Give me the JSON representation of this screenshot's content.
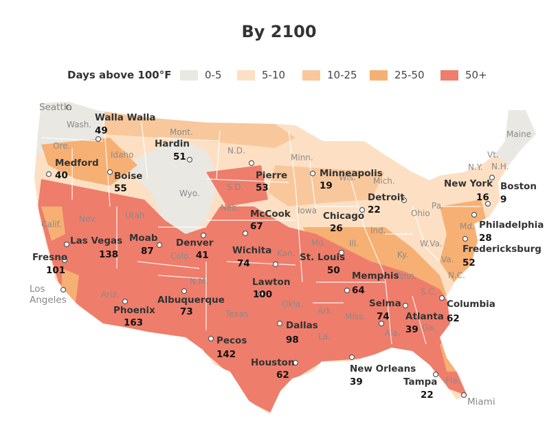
{
  "title": "By 2100",
  "legend": {
    "label": "Days above 100°F",
    "items": [
      {
        "label": "0-5",
        "color": "#e9e8e2"
      },
      {
        "label": "5-10",
        "color": "#fde0c4"
      },
      {
        "label": "10-25",
        "color": "#f8c89c"
      },
      {
        "label": "25-50",
        "color": "#f6b073"
      },
      {
        "label": "50+",
        "color": "#ee7d6b"
      }
    ]
  },
  "states": [
    "Wash.",
    "Ore.",
    "Calif.",
    "Idaho",
    "Nev.",
    "Mont.",
    "Wyo.",
    "Utah",
    "Colo.",
    "Ariz.",
    "N.M.",
    "N.D.",
    "S.D.",
    "Neb.",
    "Kan.",
    "Okla.",
    "Texas",
    "Minn.",
    "Iowa",
    "Mo.",
    "Ark.",
    "La.",
    "Wis.",
    "Mich.",
    "Ill.",
    "Ind.",
    "Ohio",
    "Ky.",
    "Tenn.",
    "Miss.",
    "Ala.",
    "Ga.",
    "Fla.",
    "S.C.",
    "N.C.",
    "Va.",
    "W.Va.",
    "Md.",
    "Pa.",
    "N.Y.",
    "Vt.",
    "N.H.",
    "Maine"
  ],
  "cities": [
    {
      "name": "Seattle",
      "value": null
    },
    {
      "name": "Walla Walla",
      "value": "49"
    },
    {
      "name": "Medford",
      "value": "40"
    },
    {
      "name": "Boise",
      "value": "55"
    },
    {
      "name": "Hardin",
      "value": "51"
    },
    {
      "name": "Pierre",
      "value": "53"
    },
    {
      "name": "Minneapolis",
      "value": "19"
    },
    {
      "name": "Detroit",
      "value": "22"
    },
    {
      "name": "New York",
      "value": "16"
    },
    {
      "name": "Boston",
      "value": "9"
    },
    {
      "name": "McCook",
      "value": "67"
    },
    {
      "name": "Chicago",
      "value": "26"
    },
    {
      "name": "Philadelphia",
      "value": "28"
    },
    {
      "name": "Fredericksburg",
      "value": "52"
    },
    {
      "name": "Fresno",
      "value": "101"
    },
    {
      "name": "Las Vegas",
      "value": "138"
    },
    {
      "name": "Moab",
      "value": "87"
    },
    {
      "name": "Denver",
      "value": "41"
    },
    {
      "name": "Wichita",
      "value": "74"
    },
    {
      "name": "St. Louis",
      "value": "50"
    },
    {
      "name": "Los Angeles",
      "value": null
    },
    {
      "name": "Lawton",
      "value": "100"
    },
    {
      "name": "Memphis",
      "value": "64"
    },
    {
      "name": "Columbia",
      "value": "62"
    },
    {
      "name": "Albuquerque",
      "value": "73"
    },
    {
      "name": "Phoenix",
      "value": "163"
    },
    {
      "name": "Selma",
      "value": "74"
    },
    {
      "name": "Atlanta",
      "value": "39"
    },
    {
      "name": "Dallas",
      "value": "98"
    },
    {
      "name": "Pecos",
      "value": "142"
    },
    {
      "name": "Houston",
      "value": "62"
    },
    {
      "name": "New Orleans",
      "value": "39"
    },
    {
      "name": "Tampa",
      "value": "22"
    },
    {
      "name": "Miami",
      "value": null
    }
  ]
}
